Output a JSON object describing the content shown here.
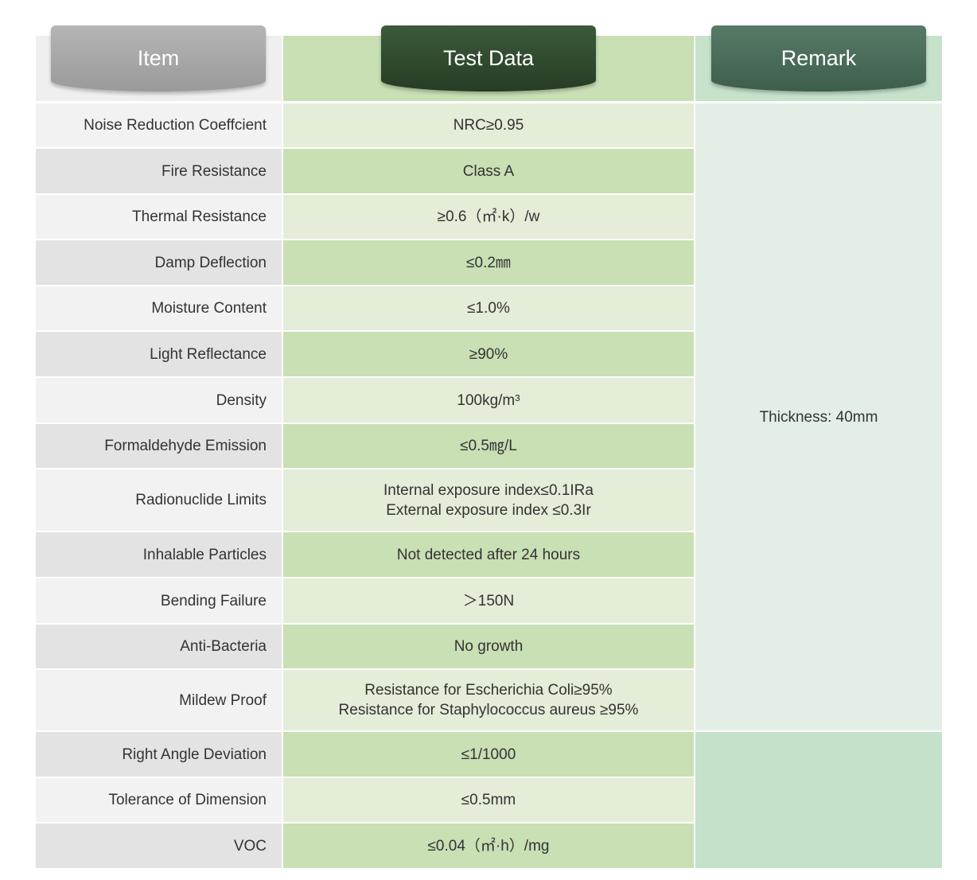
{
  "header": {
    "columns": [
      "Item",
      "Test Data",
      "Remark"
    ]
  },
  "rows": [
    {
      "item": "Noise Reduction Coeffcient",
      "test": [
        "NRC≥0.95"
      ]
    },
    {
      "item": "Fire Resistance",
      "test": [
        "Class A"
      ]
    },
    {
      "item": "Thermal Resistance",
      "test": [
        "≥0.6（㎡·k）/w"
      ]
    },
    {
      "item": "Damp Deflection",
      "test": [
        "≤0.2㎜"
      ]
    },
    {
      "item": "Moisture Content",
      "test": [
        "≤1.0%"
      ]
    },
    {
      "item": "Light Reflectance",
      "test": [
        "≥90%"
      ]
    },
    {
      "item": "Density",
      "test": [
        "100kg/m³"
      ]
    },
    {
      "item": "Formaldehyde Emission",
      "test": [
        "≤0.5㎎/L"
      ]
    },
    {
      "item": "Radionuclide Limits",
      "test": [
        "Internal exposure index≤0.1IRa",
        "External exposure index ≤0.3Ir"
      ]
    },
    {
      "item": "Inhalable Particles",
      "test": [
        "Not detected after 24 hours"
      ]
    },
    {
      "item": "Bending Failure",
      "test": [
        "＞150N"
      ]
    },
    {
      "item": "Anti-Bacteria",
      "test": [
        "No growth"
      ]
    },
    {
      "item": "Mildew Proof",
      "test": [
        "Resistance for Escherichia Coli≥95%",
        "Resistance for Staphylococcus aureus ≥95%"
      ]
    },
    {
      "item": "Right Angle Deviation",
      "test": [
        "≤1/1000"
      ]
    },
    {
      "item": "Tolerance of Dimension",
      "test": [
        "≤0.5mm"
      ]
    },
    {
      "item": "VOC",
      "test": [
        "≤0.04（㎡·h）/mg"
      ]
    }
  ],
  "remark": {
    "text": "Thickness: 40mm"
  }
}
